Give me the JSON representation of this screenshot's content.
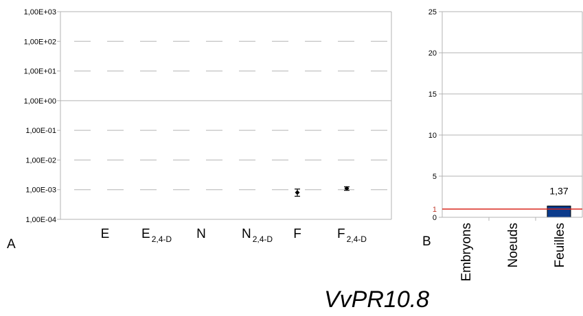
{
  "title": "VvPR10.8",
  "chart_data": [
    {
      "panel": "A",
      "type": "scatter",
      "scale": "log",
      "ylim": [
        0.0001,
        1000
      ],
      "y_ticks": [
        "1,00E-04",
        "1,00E-03",
        "1,00E-02",
        "1,00E-01",
        "1,00E+00",
        "1,00E+01",
        "1,00E+02",
        "1,00E+03"
      ],
      "categories": [
        {
          "main": "E",
          "sub": ""
        },
        {
          "main": "E",
          "sub": "2,4-D"
        },
        {
          "main": "N",
          "sub": ""
        },
        {
          "main": "N",
          "sub": "2,4-D"
        },
        {
          "main": "F",
          "sub": ""
        },
        {
          "main": "F",
          "sub": "2,4-D"
        }
      ],
      "values": [
        null,
        null,
        null,
        null,
        0.0008,
        0.0011
      ],
      "errors": [
        null,
        null,
        null,
        null,
        [
          0.0006,
          0.00105
        ],
        [
          0.00095,
          0.00125
        ]
      ],
      "grid": "dashed horizontal"
    },
    {
      "panel": "B",
      "type": "bar",
      "ylim": [
        0,
        25
      ],
      "y_ticks": [
        "0",
        "5",
        "10",
        "15",
        "20",
        "25"
      ],
      "categories": [
        "Embryons",
        "Noeuds",
        "Feuilles"
      ],
      "values": [
        null,
        null,
        1.37
      ],
      "data_labels": [
        null,
        null,
        "1,37"
      ],
      "reference_line": {
        "value": 1,
        "label": "1",
        "color": "#d9261c"
      },
      "bar_color": "#0b3b8c"
    }
  ]
}
